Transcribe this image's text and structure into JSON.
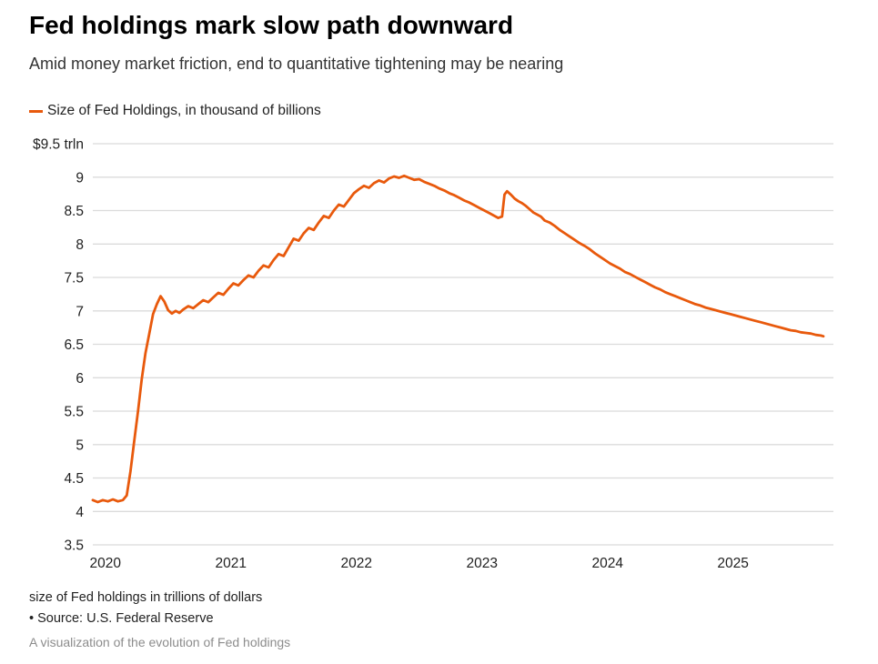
{
  "header": {
    "title": "Fed holdings mark slow path downward",
    "subtitle": "Amid money market friction, end to quantitative tightening may be nearing"
  },
  "legend": {
    "label": "Size of Fed Holdings, in thousand of billions",
    "color": "#e8590c"
  },
  "footer": {
    "caption": "size of Fed holdings in trillions of dollars",
    "source": "• Source: U.S. Federal Reserve",
    "note": "A visualization of the evolution of Fed holdings"
  },
  "colors": {
    "line": "#e8590c",
    "grid": "#dbdbdb",
    "axis_text": "#212121"
  },
  "chart_data": {
    "type": "line",
    "title": "Fed holdings mark slow path downward",
    "xlabel": "",
    "ylabel": "size of Fed holdings in trillions of dollars",
    "units": "trillions of dollars (thousand of billions)",
    "grid": "horizontal",
    "legend_position": "top-left",
    "x_range": [
      2019.9,
      2025.8
    ],
    "y_range": [
      3.5,
      9.5
    ],
    "x_ticks": [
      {
        "value": 2020,
        "label": "2020"
      },
      {
        "value": 2021,
        "label": "2021"
      },
      {
        "value": 2022,
        "label": "2022"
      },
      {
        "value": 2023,
        "label": "2023"
      },
      {
        "value": 2024,
        "label": "2024"
      },
      {
        "value": 2025,
        "label": "2025"
      }
    ],
    "y_ticks": [
      {
        "value": 9.5,
        "label": "$9.5 trln"
      },
      {
        "value": 9.0,
        "label": "9"
      },
      {
        "value": 8.5,
        "label": "8.5"
      },
      {
        "value": 8.0,
        "label": "8"
      },
      {
        "value": 7.5,
        "label": "7.5"
      },
      {
        "value": 7.0,
        "label": "7"
      },
      {
        "value": 6.5,
        "label": "6.5"
      },
      {
        "value": 6.0,
        "label": "6"
      },
      {
        "value": 5.5,
        "label": "5.5"
      },
      {
        "value": 5.0,
        "label": "5"
      },
      {
        "value": 4.5,
        "label": "4.5"
      },
      {
        "value": 4.0,
        "label": "4"
      },
      {
        "value": 3.5,
        "label": "3.5"
      }
    ],
    "series": [
      {
        "name": "Size of Fed Holdings, in thousand of billions",
        "color": "#e8590c",
        "points": [
          [
            2019.9,
            4.17
          ],
          [
            2019.94,
            4.14
          ],
          [
            2019.98,
            4.17
          ],
          [
            2020.02,
            4.15
          ],
          [
            2020.06,
            4.18
          ],
          [
            2020.1,
            4.15
          ],
          [
            2020.14,
            4.17
          ],
          [
            2020.17,
            4.24
          ],
          [
            2020.2,
            4.6
          ],
          [
            2020.23,
            5.05
          ],
          [
            2020.26,
            5.5
          ],
          [
            2020.29,
            5.98
          ],
          [
            2020.32,
            6.37
          ],
          [
            2020.35,
            6.66
          ],
          [
            2020.38,
            6.95
          ],
          [
            2020.41,
            7.1
          ],
          [
            2020.44,
            7.22
          ],
          [
            2020.47,
            7.14
          ],
          [
            2020.5,
            7.01
          ],
          [
            2020.53,
            6.96
          ],
          [
            2020.56,
            7.0
          ],
          [
            2020.59,
            6.97
          ],
          [
            2020.62,
            7.02
          ],
          [
            2020.66,
            7.07
          ],
          [
            2020.7,
            7.04
          ],
          [
            2020.74,
            7.1
          ],
          [
            2020.78,
            7.16
          ],
          [
            2020.82,
            7.13
          ],
          [
            2020.86,
            7.2
          ],
          [
            2020.9,
            7.27
          ],
          [
            2020.94,
            7.24
          ],
          [
            2020.98,
            7.33
          ],
          [
            2021.02,
            7.41
          ],
          [
            2021.06,
            7.38
          ],
          [
            2021.1,
            7.46
          ],
          [
            2021.14,
            7.53
          ],
          [
            2021.18,
            7.5
          ],
          [
            2021.22,
            7.6
          ],
          [
            2021.26,
            7.68
          ],
          [
            2021.3,
            7.65
          ],
          [
            2021.34,
            7.76
          ],
          [
            2021.38,
            7.85
          ],
          [
            2021.42,
            7.82
          ],
          [
            2021.46,
            7.95
          ],
          [
            2021.5,
            8.08
          ],
          [
            2021.54,
            8.05
          ],
          [
            2021.58,
            8.16
          ],
          [
            2021.62,
            8.24
          ],
          [
            2021.66,
            8.21
          ],
          [
            2021.7,
            8.32
          ],
          [
            2021.74,
            8.42
          ],
          [
            2021.78,
            8.39
          ],
          [
            2021.82,
            8.5
          ],
          [
            2021.86,
            8.59
          ],
          [
            2021.9,
            8.56
          ],
          [
            2021.94,
            8.66
          ],
          [
            2021.98,
            8.76
          ],
          [
            2022.02,
            8.82
          ],
          [
            2022.06,
            8.87
          ],
          [
            2022.1,
            8.84
          ],
          [
            2022.14,
            8.91
          ],
          [
            2022.18,
            8.95
          ],
          [
            2022.22,
            8.92
          ],
          [
            2022.26,
            8.98
          ],
          [
            2022.3,
            9.01
          ],
          [
            2022.34,
            8.99
          ],
          [
            2022.38,
            9.02
          ],
          [
            2022.42,
            8.99
          ],
          [
            2022.46,
            8.96
          ],
          [
            2022.5,
            8.97
          ],
          [
            2022.54,
            8.93
          ],
          [
            2022.58,
            8.9
          ],
          [
            2022.62,
            8.87
          ],
          [
            2022.66,
            8.83
          ],
          [
            2022.7,
            8.8
          ],
          [
            2022.74,
            8.76
          ],
          [
            2022.78,
            8.73
          ],
          [
            2022.82,
            8.69
          ],
          [
            2022.86,
            8.65
          ],
          [
            2022.9,
            8.62
          ],
          [
            2022.94,
            8.58
          ],
          [
            2022.98,
            8.54
          ],
          [
            2023.02,
            8.5
          ],
          [
            2023.06,
            8.46
          ],
          [
            2023.1,
            8.42
          ],
          [
            2023.13,
            8.39
          ],
          [
            2023.16,
            8.41
          ],
          [
            2023.18,
            8.74
          ],
          [
            2023.2,
            8.79
          ],
          [
            2023.23,
            8.74
          ],
          [
            2023.26,
            8.68
          ],
          [
            2023.29,
            8.64
          ],
          [
            2023.32,
            8.61
          ],
          [
            2023.35,
            8.57
          ],
          [
            2023.38,
            8.52
          ],
          [
            2023.41,
            8.47
          ],
          [
            2023.44,
            8.44
          ],
          [
            2023.47,
            8.41
          ],
          [
            2023.5,
            8.35
          ],
          [
            2023.54,
            8.32
          ],
          [
            2023.58,
            8.27
          ],
          [
            2023.62,
            8.21
          ],
          [
            2023.66,
            8.16
          ],
          [
            2023.7,
            8.11
          ],
          [
            2023.74,
            8.06
          ],
          [
            2023.78,
            8.01
          ],
          [
            2023.82,
            7.97
          ],
          [
            2023.86,
            7.92
          ],
          [
            2023.9,
            7.86
          ],
          [
            2023.94,
            7.81
          ],
          [
            2023.98,
            7.76
          ],
          [
            2024.02,
            7.71
          ],
          [
            2024.06,
            7.67
          ],
          [
            2024.1,
            7.63
          ],
          [
            2024.14,
            7.58
          ],
          [
            2024.18,
            7.55
          ],
          [
            2024.22,
            7.51
          ],
          [
            2024.26,
            7.47
          ],
          [
            2024.3,
            7.43
          ],
          [
            2024.34,
            7.39
          ],
          [
            2024.38,
            7.35
          ],
          [
            2024.42,
            7.32
          ],
          [
            2024.46,
            7.28
          ],
          [
            2024.5,
            7.25
          ],
          [
            2024.54,
            7.22
          ],
          [
            2024.58,
            7.19
          ],
          [
            2024.62,
            7.16
          ],
          [
            2024.66,
            7.13
          ],
          [
            2024.7,
            7.1
          ],
          [
            2024.74,
            7.08
          ],
          [
            2024.78,
            7.05
          ],
          [
            2024.82,
            7.03
          ],
          [
            2024.86,
            7.01
          ],
          [
            2024.9,
            6.99
          ],
          [
            2024.94,
            6.97
          ],
          [
            2024.98,
            6.95
          ],
          [
            2025.02,
            6.93
          ],
          [
            2025.06,
            6.91
          ],
          [
            2025.1,
            6.89
          ],
          [
            2025.14,
            6.87
          ],
          [
            2025.18,
            6.85
          ],
          [
            2025.22,
            6.83
          ],
          [
            2025.26,
            6.81
          ],
          [
            2025.3,
            6.79
          ],
          [
            2025.34,
            6.77
          ],
          [
            2025.38,
            6.75
          ],
          [
            2025.42,
            6.73
          ],
          [
            2025.46,
            6.71
          ],
          [
            2025.5,
            6.7
          ],
          [
            2025.54,
            6.68
          ],
          [
            2025.58,
            6.67
          ],
          [
            2025.62,
            6.66
          ],
          [
            2025.66,
            6.64
          ],
          [
            2025.7,
            6.63
          ],
          [
            2025.72,
            6.62
          ]
        ]
      }
    ]
  }
}
